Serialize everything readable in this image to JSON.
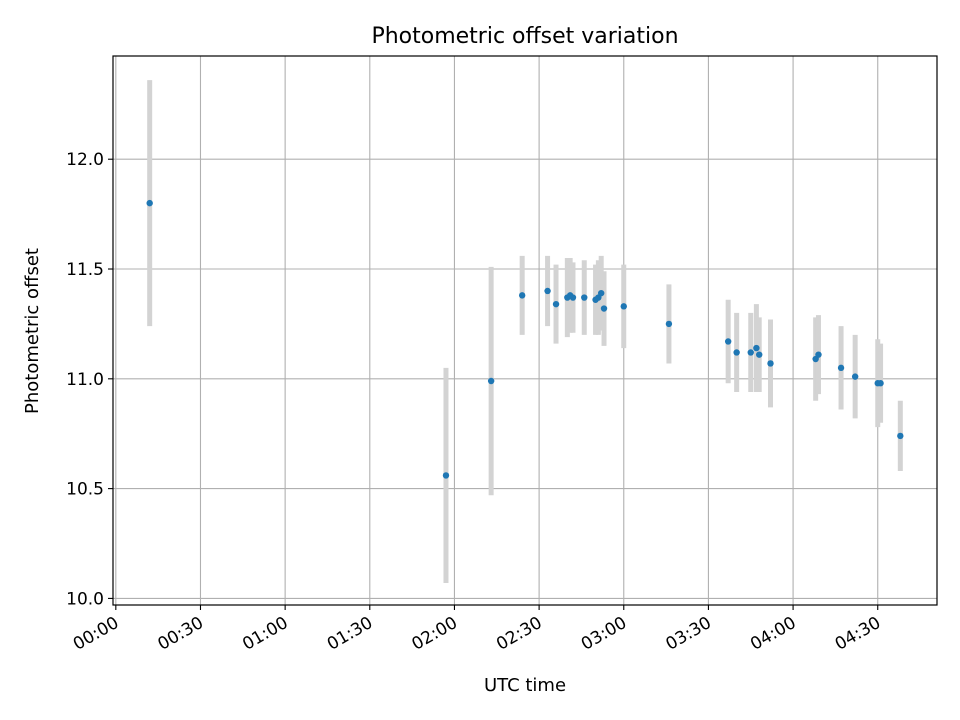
{
  "chart_data": {
    "type": "scatter",
    "title": "Photometric offset variation",
    "xlabel": "UTC time",
    "ylabel": "Photometric offset",
    "x_tick_labels": [
      "00:00",
      "00:30",
      "01:00",
      "01:30",
      "02:00",
      "02:30",
      "03:00",
      "03:30",
      "04:00",
      "04:30"
    ],
    "y_tick_labels": [
      "10.0",
      "10.5",
      "11.0",
      "11.5",
      "12.0"
    ],
    "xlim": [
      "23:59",
      "04:51"
    ],
    "ylim": [
      9.97,
      12.47
    ],
    "grid": true,
    "colors": {
      "point": "#1f77b4",
      "errorbar": "#d3d3d3",
      "grid": "#b0b0b0",
      "axis": "#000000"
    },
    "series": [
      {
        "points": [
          {
            "x": "00:12",
            "y": 11.8,
            "err": 0.56
          },
          {
            "x": "01:57",
            "y": 10.56,
            "err": 0.49
          },
          {
            "x": "02:13",
            "y": 10.99,
            "err": 0.52
          },
          {
            "x": "02:24",
            "y": 11.38,
            "err": 0.18
          },
          {
            "x": "02:33",
            "y": 11.4,
            "err": 0.16
          },
          {
            "x": "02:36",
            "y": 11.34,
            "err": 0.18
          },
          {
            "x": "02:40",
            "y": 11.37,
            "err": 0.18
          },
          {
            "x": "02:41",
            "y": 11.38,
            "err": 0.17
          },
          {
            "x": "02:42",
            "y": 11.37,
            "err": 0.16
          },
          {
            "x": "02:46",
            "y": 11.37,
            "err": 0.17
          },
          {
            "x": "02:50",
            "y": 11.36,
            "err": 0.16
          },
          {
            "x": "02:51",
            "y": 11.37,
            "err": 0.17
          },
          {
            "x": "02:52",
            "y": 11.39,
            "err": 0.17
          },
          {
            "x": "02:53",
            "y": 11.32,
            "err": 0.17
          },
          {
            "x": "03:00",
            "y": 11.33,
            "err": 0.19
          },
          {
            "x": "03:16",
            "y": 11.25,
            "err": 0.18
          },
          {
            "x": "03:37",
            "y": 11.17,
            "err": 0.19
          },
          {
            "x": "03:40",
            "y": 11.12,
            "err": 0.18
          },
          {
            "x": "03:45",
            "y": 11.12,
            "err": 0.18
          },
          {
            "x": "03:47",
            "y": 11.14,
            "err": 0.2
          },
          {
            "x": "03:48",
            "y": 11.11,
            "err": 0.17
          },
          {
            "x": "03:52",
            "y": 11.07,
            "err": 0.2
          },
          {
            "x": "04:08",
            "y": 11.09,
            "err": 0.19
          },
          {
            "x": "04:09",
            "y": 11.11,
            "err": 0.18
          },
          {
            "x": "04:17",
            "y": 11.05,
            "err": 0.19
          },
          {
            "x": "04:22",
            "y": 11.01,
            "err": 0.19
          },
          {
            "x": "04:30",
            "y": 10.98,
            "err": 0.2
          },
          {
            "x": "04:31",
            "y": 10.98,
            "err": 0.18
          },
          {
            "x": "04:38",
            "y": 10.74,
            "err": 0.16
          }
        ]
      }
    ]
  }
}
